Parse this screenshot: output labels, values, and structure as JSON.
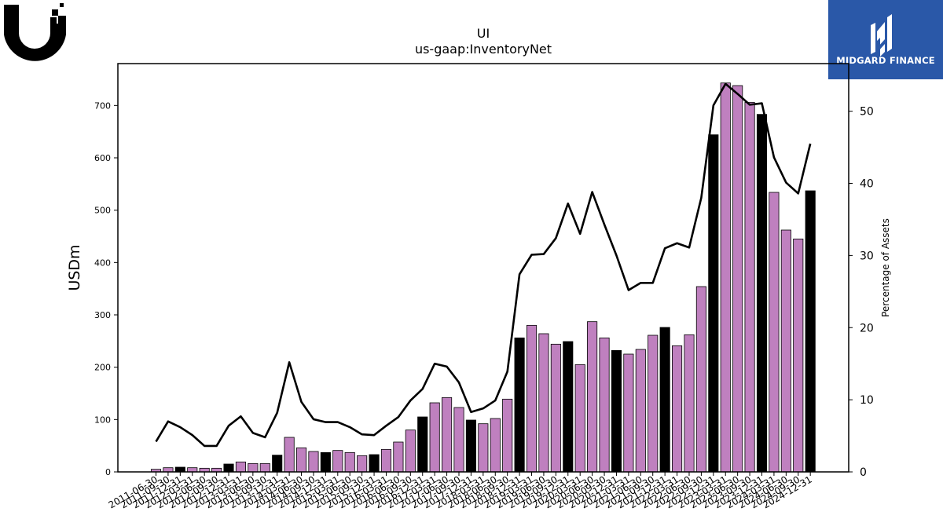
{
  "logos": {
    "right_brand_text": "MIDGARD FINANCE"
  },
  "chart_data": {
    "type": "bar+line",
    "title": "UI",
    "subtitle": "us-gaap:InventoryNet",
    "ylabel_left": "USDm",
    "ylabel_right": "Percentage of Assets",
    "ylim_left": [
      0,
      780
    ],
    "ylim_right": [
      0,
      56.6
    ],
    "yticks_left": [
      0,
      100,
      200,
      300,
      400,
      500,
      600,
      700
    ],
    "yticks_right": [
      0,
      10,
      20,
      30,
      40,
      50
    ],
    "categories": [
      "2011-06-30",
      "2011-09-30",
      "2011-12-31",
      "2012-03-31",
      "2012-06-30",
      "2012-09-30",
      "2012-12-31",
      "2013-03-31",
      "2013-06-30",
      "2013-09-30",
      "2013-12-31",
      "2014-03-31",
      "2014-06-30",
      "2014-09-30",
      "2014-12-31",
      "2015-03-31",
      "2015-06-30",
      "2015-09-30",
      "2015-12-31",
      "2016-03-31",
      "2016-06-30",
      "2016-09-30",
      "2016-12-31",
      "2017-03-31",
      "2017-06-30",
      "2017-09-30",
      "2017-12-31",
      "2018-03-31",
      "2018-06-30",
      "2018-09-30",
      "2018-12-31",
      "2019-03-31",
      "2019-06-30",
      "2019-09-30",
      "2019-12-31",
      "2020-03-31",
      "2020-06-30",
      "2020-09-30",
      "2020-12-31",
      "2021-03-31",
      "2021-06-30",
      "2021-09-30",
      "2021-12-31",
      "2022-03-31",
      "2022-06-30",
      "2022-09-30",
      "2022-12-31",
      "2023-03-31",
      "2023-06-30",
      "2023-09-30",
      "2023-12-31",
      "2024-03-31",
      "2024-06-30",
      "2024-09-30",
      "2024-12-31"
    ],
    "series": [
      {
        "name": "InventoryNet (USDm)",
        "type": "bar",
        "values": [
          5,
          8,
          9,
          8,
          7,
          7,
          15,
          19,
          16,
          16,
          32,
          66,
          46,
          39,
          37,
          41,
          37,
          31,
          33,
          43,
          57,
          80,
          105,
          132,
          142,
          123,
          99,
          92,
          102,
          139,
          256,
          280,
          264,
          244,
          249,
          205,
          287,
          256,
          232,
          225,
          234,
          261,
          276,
          241,
          262,
          354,
          644,
          743,
          738,
          706,
          683,
          534,
          462,
          445,
          537
        ],
        "highlight_color": "#000000",
        "bar_color": "#bf80bf",
        "highlight_every": 4,
        "highlight_offset": 2
      },
      {
        "name": "Percentage of Assets",
        "type": "line",
        "axis": "right",
        "color": "#000000",
        "values": [
          4.2,
          7.0,
          6.2,
          5.1,
          3.6,
          3.6,
          6.4,
          7.7,
          5.4,
          4.8,
          8.2,
          15.2,
          9.7,
          7.3,
          6.9,
          6.9,
          6.2,
          5.2,
          5.1,
          6.4,
          7.6,
          9.9,
          11.5,
          15.0,
          14.6,
          12.4,
          8.3,
          8.8,
          9.9,
          13.9,
          27.4,
          30.1,
          30.2,
          32.4,
          37.2,
          33.0,
          38.8,
          34.3,
          30.0,
          25.2,
          26.2,
          26.2,
          31.0,
          31.7,
          31.1,
          38.0,
          50.8,
          53.8,
          52.4,
          50.9,
          51.1,
          43.6,
          40.1,
          38.6,
          45.5
        ]
      }
    ],
    "grid": false,
    "legend": "none"
  }
}
